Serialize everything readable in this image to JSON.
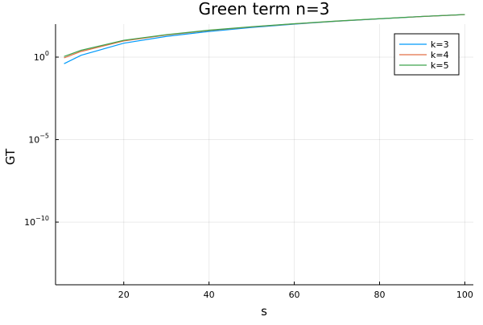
{
  "chart_data": {
    "type": "line",
    "title": "Green term n=3",
    "xlabel": "s",
    "ylabel": "GT",
    "x_scale": "linear",
    "y_scale": "log10",
    "xlim": [
      4,
      102
    ],
    "ylim_exponent": [
      -13.8,
      2
    ],
    "x_ticks": [
      {
        "value": 20,
        "label": "20"
      },
      {
        "value": 40,
        "label": "40"
      },
      {
        "value": 60,
        "label": "60"
      },
      {
        "value": 80,
        "label": "80"
      },
      {
        "value": 100,
        "label": "100"
      }
    ],
    "y_ticks": [
      {
        "exponent": 0,
        "base": "10",
        "exp_label": "0"
      },
      {
        "exponent": -5,
        "base": "10",
        "exp_label": "−5"
      },
      {
        "exponent": -10,
        "base": "10",
        "exp_label": "−10"
      }
    ],
    "grid": true,
    "legend_position": "top-right",
    "x": [
      6,
      10,
      20,
      30,
      40,
      50,
      60,
      70,
      80,
      90,
      100
    ],
    "series": [
      {
        "name": "k=3",
        "color": "#009AFA",
        "y": [
          0.4,
          1.3,
          7,
          18,
          36,
          63,
          100,
          150,
          210,
          290,
          380
        ]
      },
      {
        "name": "k=4",
        "color": "#E26F46",
        "y": [
          0.9,
          2.2,
          9.5,
          22,
          41,
          68,
          104,
          152,
          212,
          290,
          380
        ]
      },
      {
        "name": "k=5",
        "color": "#3EA44E",
        "y": [
          1.1,
          2.6,
          10.5,
          23,
          43,
          70,
          106,
          154,
          214,
          292,
          382
        ]
      }
    ]
  }
}
